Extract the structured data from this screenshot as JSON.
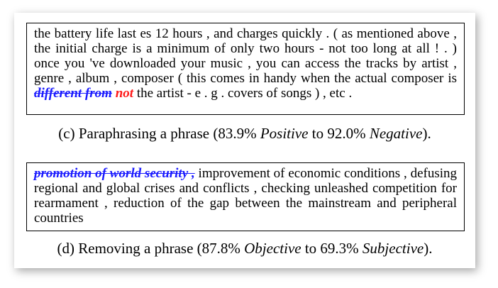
{
  "example_c": {
    "text_before": "the battery life last es 12 hours , and charges quickly . ( as mentioned above , the initial charge is a minimum of only two hours - not too long at all ! . ) once you 've downloaded your music , you can access the tracks by artist , genre , album , composer ( this comes in handy when the actual composer is ",
    "removed_phrase": "different from",
    "inserted_phrase": "not",
    "text_after": " the artist - e . g . covers of songs ) , etc .",
    "caption": {
      "prefix": "(c) Paraphrasing a phrase (83.9% ",
      "from_label": "Positive",
      "middle": " to 92.0% ",
      "to_label": "Negative",
      "suffix": ")."
    }
  },
  "example_d": {
    "removed_phrase": "promotion of world security ,",
    "text_after": " improvement of economic conditions , defusing regional and global crises and conflicts , checking unleashed competition for rearmament , reduction of the gap between the mainstream and peripheral countries",
    "caption": {
      "prefix": "(d) Removing a phrase (87.8% ",
      "from_label": "Objective",
      "middle": " to 69.3% ",
      "to_label": "Subjective",
      "suffix": ")."
    }
  },
  "colors": {
    "removed": "#1a1aff",
    "inserted": "#ff1a1a"
  }
}
